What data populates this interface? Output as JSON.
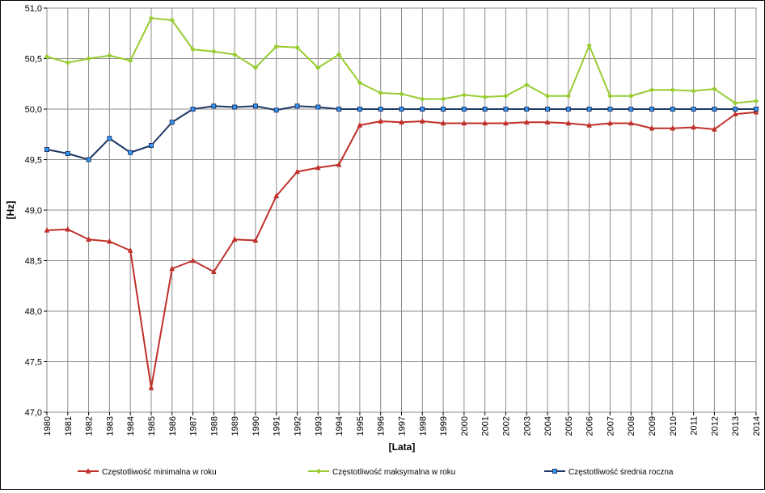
{
  "chart_data": {
    "type": "line",
    "title": "",
    "xlabel": "[Lata]",
    "ylabel": "[Hz]",
    "ylim": [
      47.0,
      51.0
    ],
    "y_ticks": [
      "47,0",
      "47,5",
      "48,0",
      "48,5",
      "49,0",
      "49,5",
      "50,0",
      "50,5",
      "51,0"
    ],
    "y_tick_values": [
      47.0,
      47.5,
      48.0,
      48.5,
      49.0,
      49.5,
      50.0,
      50.5,
      51.0
    ],
    "grid": true,
    "legend_position": "bottom",
    "categories": [
      "1980",
      "1981",
      "1982",
      "1983",
      "1984",
      "1985",
      "1986",
      "1987",
      "1988",
      "1989",
      "1990",
      "1991",
      "1992",
      "1993",
      "1994",
      "1995",
      "1996",
      "1997",
      "1998",
      "1999",
      "2000",
      "2001",
      "2002",
      "2003",
      "2004",
      "2005",
      "2006",
      "2007",
      "2008",
      "2009",
      "2010",
      "2011",
      "2012",
      "2013",
      "2014"
    ],
    "series": [
      {
        "name": "Częstotliwość minimalna w roku",
        "color": "#C0302A",
        "marker": "triangle",
        "values": [
          48.8,
          48.81,
          48.71,
          48.69,
          48.6,
          47.24,
          48.42,
          48.5,
          48.39,
          48.71,
          48.7,
          49.14,
          49.38,
          49.42,
          49.45,
          49.84,
          49.88,
          49.87,
          49.88,
          49.86,
          49.86,
          49.86,
          49.86,
          49.87,
          49.87,
          49.86,
          49.84,
          49.86,
          49.86,
          49.81,
          49.81,
          49.82,
          49.8,
          49.95,
          49.97
        ]
      },
      {
        "name": "Częstotliwość maksymalna w roku",
        "color": "#99CC33",
        "marker": "diamond",
        "values": [
          50.52,
          50.46,
          50.5,
          50.53,
          50.48,
          50.9,
          50.88,
          50.59,
          50.57,
          50.54,
          50.41,
          50.62,
          50.61,
          50.41,
          50.54,
          50.26,
          50.16,
          50.15,
          50.1,
          50.1,
          50.14,
          50.12,
          50.13,
          50.24,
          50.13,
          50.13,
          50.63,
          50.13,
          50.13,
          50.19,
          50.19,
          50.18,
          50.2,
          50.06,
          50.08
        ]
      },
      {
        "name": "Częstotliwość średnia roczna",
        "color": "#1F3864",
        "marker_fill": "#3399FF",
        "marker": "square",
        "values": [
          49.6,
          49.56,
          49.5,
          49.71,
          49.57,
          49.64,
          49.87,
          50.0,
          50.03,
          50.02,
          50.03,
          49.99,
          50.03,
          50.02,
          50.0,
          50.0,
          50.0,
          50.0,
          50.0,
          50.0,
          50.0,
          50.0,
          50.0,
          50.0,
          50.0,
          50.0,
          50.0,
          50.0,
          50.0,
          50.0,
          50.0,
          50.0,
          50.0,
          50.0,
          50.0
        ]
      }
    ]
  }
}
